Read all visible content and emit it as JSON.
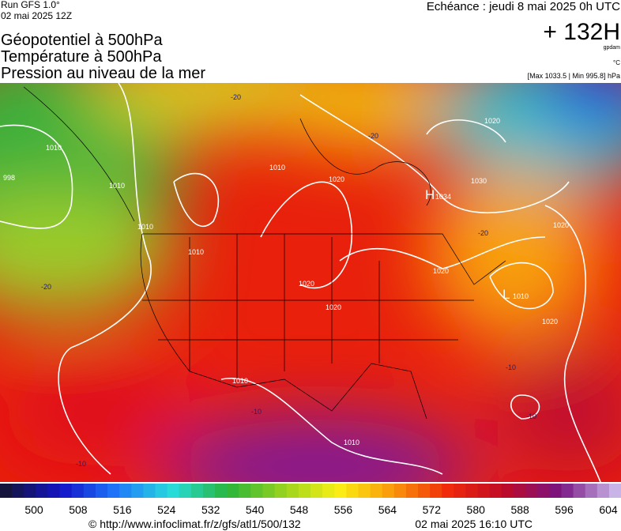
{
  "header": {
    "run": "Run GFS 1.0°",
    "run_date": "02 mai 2025 12Z",
    "title_lines": [
      "Géopotentiel à 500hPa",
      "Température à 500hPa",
      "Pression au niveau de la mer"
    ],
    "echeance": "Echéance : jeudi 8 mai 2025 0h UTC",
    "lead": "+ 132H",
    "unit_geo": "gpdam",
    "unit_temp": "°C",
    "pressure_range": "[Max 1033.5 | Min 995.8] hPa"
  },
  "map": {
    "isobar_labels": [
      "998",
      "1010",
      "1010",
      "1010",
      "1020",
      "1020",
      "1020",
      "1010",
      "1030",
      "1020",
      "1020",
      "1010",
      "1020",
      "1010",
      "1020",
      "1010"
    ],
    "temp_labels": [
      "-20",
      "-20",
      "-20",
      "-20",
      "-10",
      "-10",
      "-10",
      "-10"
    ],
    "centers": [
      {
        "letter": "H",
        "value": "1034"
      },
      {
        "letter": "L",
        "value": "1010"
      }
    ]
  },
  "colorbar": {
    "labels": [
      500,
      508,
      516,
      524,
      532,
      540,
      548,
      556,
      564,
      572,
      580,
      588,
      596,
      604
    ]
  },
  "footer": {
    "url": "© http://www.infoclimat.fr/z/gfs/atl1/500/132",
    "timestamp": "02 mai 2025 16:10 UTC"
  }
}
